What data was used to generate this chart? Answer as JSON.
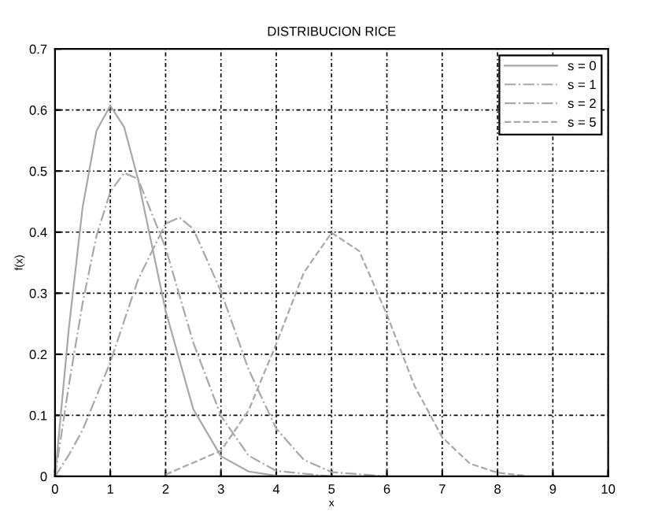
{
  "chart_data": {
    "type": "line",
    "title": "DISTRIBUCION RICE",
    "xlabel": "x",
    "ylabel": "f(x)",
    "xlim": [
      0,
      10
    ],
    "ylim": [
      0,
      0.7
    ],
    "xticks": [
      0,
      1,
      2,
      3,
      4,
      5,
      6,
      7,
      8,
      9,
      10
    ],
    "yticks": [
      0,
      0.1,
      0.2,
      0.3,
      0.4,
      0.5,
      0.6,
      0.7
    ],
    "grid": true,
    "legend": "top right",
    "marker": "none",
    "series": [
      {
        "name": "s = 0",
        "color": "#a8a8a8",
        "line_style": "solid",
        "x": [
          0,
          0.25,
          0.5,
          0.75,
          1,
          1.25,
          1.5,
          1.75,
          2,
          2.5,
          3,
          3.5,
          4,
          5
        ],
        "values": [
          0,
          0.242,
          0.441,
          0.566,
          0.607,
          0.572,
          0.487,
          0.379,
          0.271,
          0.11,
          0.033,
          0.008,
          0.001,
          0
        ]
      },
      {
        "name": "s = 1",
        "color": "#a8a8a8",
        "line_style": "dashdot",
        "x": [
          0,
          0.25,
          0.5,
          0.75,
          1,
          1.25,
          1.5,
          2,
          2.5,
          3,
          3.5,
          4,
          5
        ],
        "values": [
          0,
          0.149,
          0.284,
          0.394,
          0.466,
          0.497,
          0.487,
          0.374,
          0.219,
          0.099,
          0.034,
          0.009,
          0
        ]
      },
      {
        "name": "s = 2",
        "color": "#a8a8a8",
        "line_style": "dashdot",
        "x": [
          0,
          0.25,
          0.5,
          1,
          1.5,
          2,
          2.25,
          2.5,
          3,
          3.5,
          4,
          4.5,
          5,
          6
        ],
        "values": [
          0,
          0.035,
          0.076,
          0.187,
          0.322,
          0.414,
          0.424,
          0.405,
          0.303,
          0.175,
          0.078,
          0.027,
          0.007,
          0
        ]
      },
      {
        "name": "s = 5",
        "color": "#a8a8a8",
        "line_style": "dashed",
        "x": [
          2,
          3,
          3.5,
          4,
          4.5,
          5,
          5.5,
          6,
          6.5,
          7,
          7.5,
          8,
          8.5
        ],
        "values": [
          0.003,
          0.042,
          0.108,
          0.217,
          0.334,
          0.399,
          0.369,
          0.265,
          0.148,
          0.064,
          0.021,
          0.006,
          0.001
        ]
      }
    ]
  }
}
